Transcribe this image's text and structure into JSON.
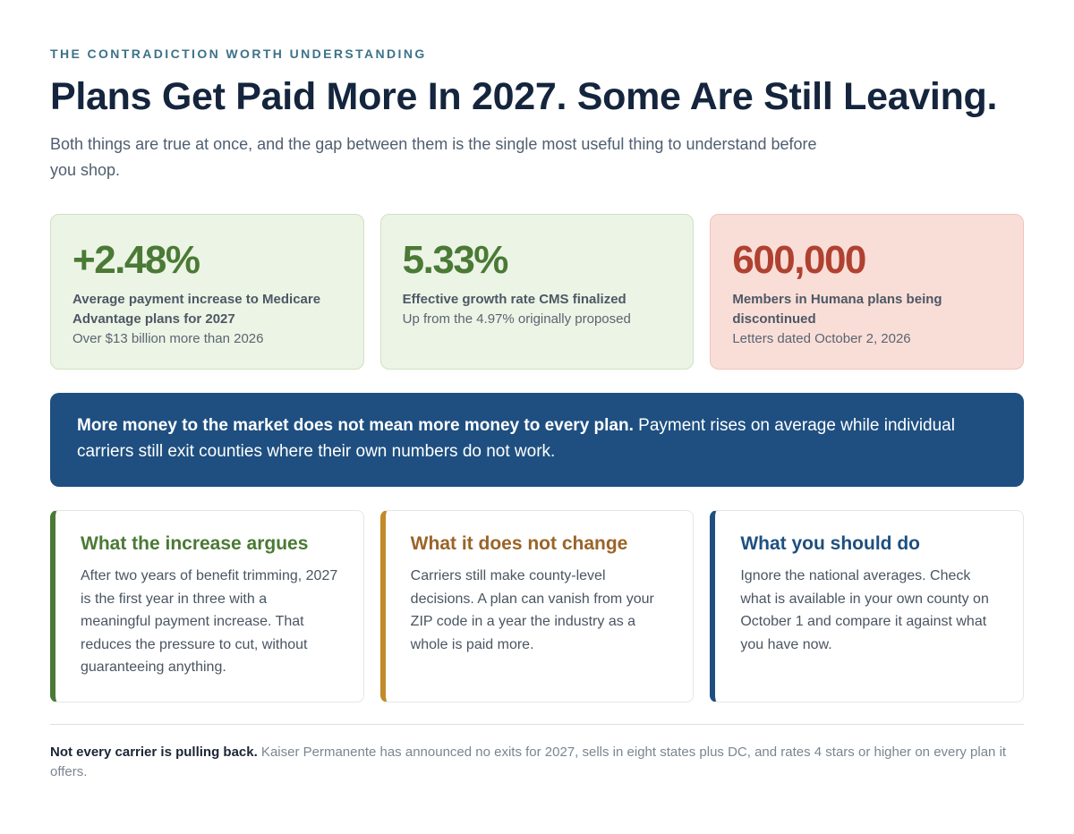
{
  "eyebrow": "THE CONTRADICTION WORTH UNDERSTANDING",
  "title": "Plans Get Paid More In 2027. Some Are Still Leaving.",
  "subtitle": "Both things are true at once, and the gap between them is the single most useful thing to understand before you shop.",
  "stats": [
    {
      "value": "+2.48%",
      "label": "Average payment increase to Medicare Advantage plans for 2027",
      "note": "Over $13 billion more than 2026",
      "color": "#4a7a35"
    },
    {
      "value": "5.33%",
      "label": "Effective growth rate CMS finalized",
      "note": "Up from the 4.97% originally proposed",
      "color": "#4a7a35"
    },
    {
      "value": "600,000",
      "label": "Members in Humana plans being discontinued",
      "note": "Letters dated October 2, 2026",
      "color": "#b04130"
    }
  ],
  "banner": {
    "bold": "More money to the market does not mean more money to every plan.",
    "text": " Payment rises on average while individual carriers still exit counties where their own numbers do not work."
  },
  "columns": [
    {
      "title": "What the increase argues",
      "body": "After two years of benefit trimming, 2027 is the first year in three with a meaningful payment increase. That reduces the pressure to cut, without guaranteeing anything.",
      "accent": "#4a7a35"
    },
    {
      "title": "What it does not change",
      "body": "Carriers still make county-level decisions. A plan can vanish from your ZIP code in a year the industry as a whole is paid more.",
      "accent": "#c28a28"
    },
    {
      "title": "What you should do",
      "body": "Ignore the national averages. Check what is available in your own county on October 1 and compare it against what you have now.",
      "accent": "#1e4f80"
    }
  ],
  "footnote": {
    "bold": "Not every carrier is pulling back.",
    "text": " Kaiser Permanente has announced no exits for 2027, sells in eight states plus DC, and rates 4 stars or higher on every plan it offers."
  }
}
